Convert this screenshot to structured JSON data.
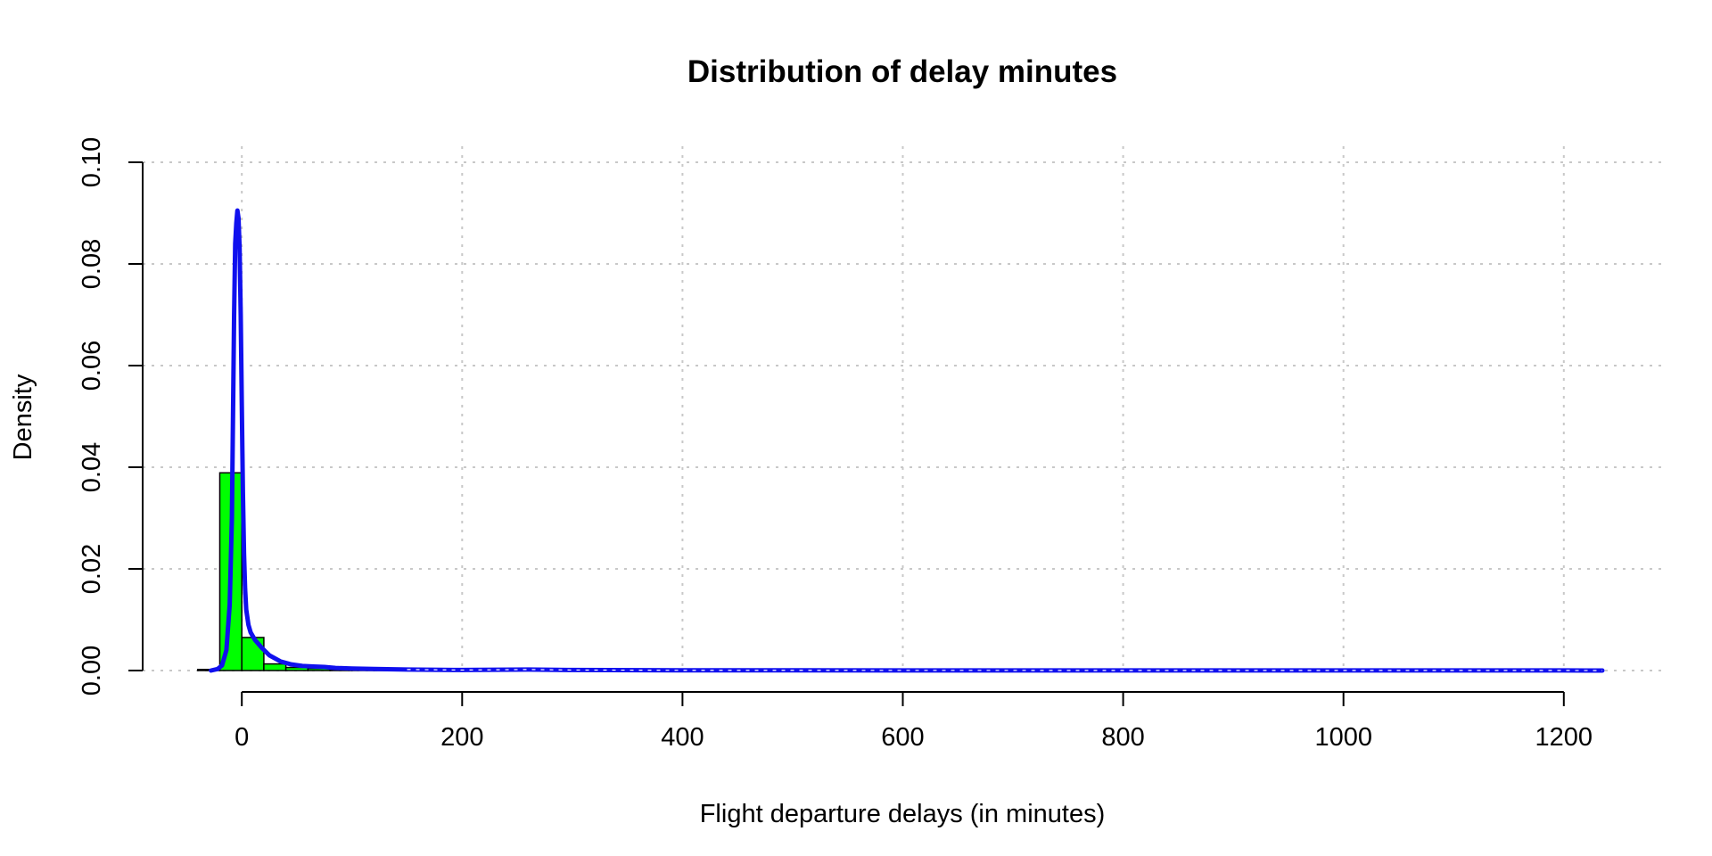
{
  "chart_data": {
    "type": "bar",
    "title": "Distribution of delay minutes",
    "xlabel": "Flight departure delays (in minutes)",
    "ylabel": "Density",
    "xlim": [
      -90,
      1290
    ],
    "ylim": [
      0,
      0.1
    ],
    "x_ticks": [
      0,
      200,
      400,
      600,
      800,
      1000,
      1200
    ],
    "y_ticks": [
      "0.00",
      "0.02",
      "0.04",
      "0.06",
      "0.08",
      "0.10"
    ],
    "grid": true,
    "histogram": {
      "name": "",
      "bin_width": 20,
      "fill_color": "#00ff00",
      "bins": [
        {
          "start": -40,
          "end": -20,
          "density": 0.0002
        },
        {
          "start": -20,
          "end": 0,
          "density": 0.0389
        },
        {
          "start": 0,
          "end": 20,
          "density": 0.0065
        },
        {
          "start": 20,
          "end": 40,
          "density": 0.0013
        },
        {
          "start": 40,
          "end": 60,
          "density": 0.0006
        },
        {
          "start": 60,
          "end": 80,
          "density": 0.0004
        },
        {
          "start": 80,
          "end": 100,
          "density": 0.0002
        },
        {
          "start": 100,
          "end": 120,
          "density": 0.0001
        },
        {
          "start": 120,
          "end": 140,
          "density": 0.0001
        }
      ]
    },
    "density_curve": {
      "name": "",
      "color": "#1010ee",
      "x": [
        -28,
        -22,
        -18,
        -14,
        -11,
        -9,
        -8,
        -7,
        -6,
        -5,
        -4,
        -3,
        -2,
        -1,
        0,
        1,
        2,
        3,
        4,
        6,
        8,
        12,
        18,
        25,
        35,
        45,
        55,
        65,
        75,
        85,
        100,
        120,
        150,
        200,
        260,
        300,
        400,
        500,
        600,
        700,
        800,
        900,
        1000,
        1100,
        1200,
        1235
      ],
      "y": [
        0.0,
        0.0003,
        0.001,
        0.004,
        0.013,
        0.03,
        0.05,
        0.07,
        0.084,
        0.088,
        0.0905,
        0.089,
        0.083,
        0.07,
        0.052,
        0.035,
        0.023,
        0.016,
        0.012,
        0.009,
        0.0075,
        0.006,
        0.0045,
        0.003,
        0.0018,
        0.0012,
        0.0009,
        0.0008,
        0.0007,
        0.0005,
        0.0004,
        0.0003,
        0.0002,
        0.0001,
        0.0002,
        0.0001,
        5e-05,
        5e-05,
        3e-05,
        3e-05,
        2e-05,
        2e-05,
        2e-05,
        2e-05,
        2e-05,
        0.0
      ]
    }
  }
}
